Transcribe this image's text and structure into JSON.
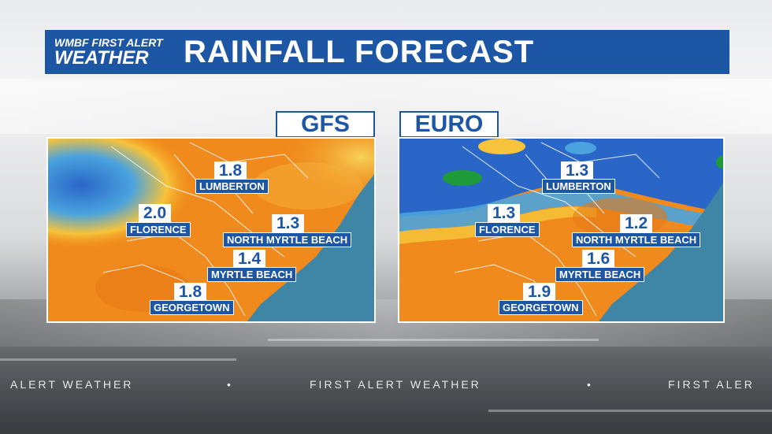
{
  "header": {
    "logo_top": "WMBF FIRST ALERT",
    "logo_bottom": "WEATHER",
    "title": "RAINFALL FORECAST"
  },
  "models": [
    {
      "label": "GFS",
      "locations": [
        {
          "value": "1.8",
          "city": "LUMBERTON"
        },
        {
          "value": "2.0",
          "city": "FLORENCE"
        },
        {
          "value": "1.3",
          "city": "NORTH MYRTLE BEACH"
        },
        {
          "value": "1.4",
          "city": "MYRTLE BEACH"
        },
        {
          "value": "1.8",
          "city": "GEORGETOWN"
        }
      ]
    },
    {
      "label": "EURO",
      "locations": [
        {
          "value": "1.3",
          "city": "LUMBERTON"
        },
        {
          "value": "1.3",
          "city": "FLORENCE"
        },
        {
          "value": "1.2",
          "city": "NORTH MYRTLE BEACH"
        },
        {
          "value": "1.6",
          "city": "MYRTLE BEACH"
        },
        {
          "value": "1.9",
          "city": "GEORGETOWN"
        }
      ]
    }
  ],
  "ticker": {
    "segment_1": "ALERT WEATHER",
    "sep_1": "•",
    "segment_2": "FIRST ALERT WEATHER",
    "sep_2": "•",
    "segment_3": "FIRST ALER"
  },
  "colors": {
    "brand_blue": "#1e56a6",
    "rain_orange": "#f08a1c",
    "rain_yellow": "#f7c33a",
    "rain_blue": "#2a66c8",
    "ocean": "#3f86a6",
    "rain_green": "#1f9a3a"
  }
}
